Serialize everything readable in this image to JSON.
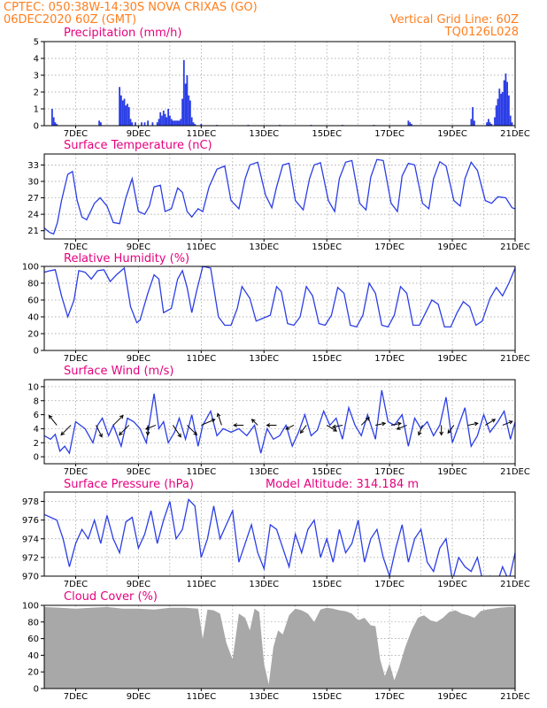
{
  "header": {
    "left_line1": "CPTEC:   050:38W-14:30S   NOVA CRIXAS (GO)",
    "left_line2": "06DEC2020 60Z (GMT)",
    "right_line1": "Vertical Grid Line: 60Z",
    "right_line2": "TQ0126L028"
  },
  "x_axis": {
    "ticks": [
      "7DEC",
      "9DEC",
      "11DEC",
      "13DEC",
      "15DEC",
      "17DEC",
      "19DEC",
      "21DEC"
    ],
    "start_day": 6,
    "end_day": 21
  },
  "colors": {
    "header": "#ff7f1f",
    "title": "#e6007e",
    "line": "#2b3ee6",
    "bar": "#2b3ee6",
    "cloud": "#a8a8a8"
  },
  "chart_data": [
    {
      "type": "bar",
      "title": "Precipitation (mm/h)",
      "ylim": [
        0,
        5
      ],
      "yticks": [
        "0",
        "1",
        "2",
        "3",
        "4",
        "5"
      ],
      "x": [
        6.25,
        6.3,
        6.35,
        6.4,
        7.75,
        7.8,
        8.4,
        8.45,
        8.5,
        8.55,
        8.6,
        8.65,
        8.7,
        8.75,
        8.8,
        8.9,
        9.1,
        9.2,
        9.3,
        9.45,
        9.6,
        9.65,
        9.7,
        9.75,
        9.8,
        9.85,
        9.9,
        9.95,
        10.0,
        10.05,
        10.1,
        10.15,
        10.2,
        10.25,
        10.3,
        10.35,
        10.4,
        10.45,
        10.5,
        10.55,
        10.6,
        10.65,
        10.7,
        10.75,
        10.8,
        11.0,
        11.5,
        12.5,
        13.5,
        14.5,
        15.5,
        16.5,
        17.6,
        17.65,
        17.7,
        19.6,
        19.65,
        19.7,
        20.1,
        20.15,
        20.2,
        20.25,
        20.35,
        20.4,
        20.45,
        20.5,
        20.55,
        20.6,
        20.65,
        20.7,
        20.75,
        20.8,
        20.85,
        20.9
      ],
      "values": [
        1.0,
        0.5,
        0.2,
        0.1,
        0.3,
        0.2,
        2.3,
        1.8,
        1.5,
        1.6,
        1.2,
        1.3,
        1.1,
        0.4,
        0.2,
        0.2,
        0.2,
        0.2,
        0.3,
        0.2,
        0.2,
        0.4,
        0.8,
        0.6,
        0.9,
        0.7,
        0.5,
        1.0,
        0.6,
        0.4,
        0.3,
        0.3,
        0.3,
        0.3,
        0.3,
        0.4,
        1.6,
        3.9,
        2.5,
        3.0,
        1.8,
        1.5,
        0.5,
        0.2,
        0.1,
        0.1,
        0.05,
        0.05,
        0.05,
        0.05,
        0.05,
        0.05,
        0.3,
        0.2,
        0.1,
        0.4,
        1.1,
        0.3,
        0.2,
        0.4,
        0.2,
        0.1,
        0.5,
        1.2,
        1.6,
        2.2,
        1.9,
        2.0,
        2.7,
        3.1,
        2.6,
        1.8,
        0.6,
        0.2
      ]
    },
    {
      "type": "line",
      "title": "Surface Temperature (nC)",
      "ylim": [
        19.5,
        35
      ],
      "yticks": [
        "21",
        "24",
        "27",
        "30",
        "33"
      ],
      "x": [
        6.0,
        6.17,
        6.3,
        6.42,
        6.55,
        6.75,
        6.9,
        7.05,
        7.2,
        7.35,
        7.6,
        7.78,
        8.0,
        8.2,
        8.4,
        8.6,
        8.8,
        9.0,
        9.2,
        9.35,
        9.5,
        9.7,
        9.85,
        10.05,
        10.25,
        10.4,
        10.55,
        10.7,
        10.9,
        11.05,
        11.25,
        11.5,
        11.75,
        11.95,
        12.2,
        12.4,
        12.55,
        12.8,
        13.05,
        13.25,
        13.4,
        13.6,
        13.8,
        14.0,
        14.25,
        14.45,
        14.6,
        14.8,
        15.05,
        15.25,
        15.4,
        15.6,
        15.8,
        16.05,
        16.25,
        16.4,
        16.6,
        16.8,
        17.05,
        17.25,
        17.4,
        17.6,
        17.8,
        18.05,
        18.25,
        18.4,
        18.6,
        18.8,
        19.05,
        19.25,
        19.4,
        19.6,
        19.8,
        20.05,
        20.25,
        20.45,
        20.7,
        20.9,
        21.0
      ],
      "values": [
        21.5,
        20.7,
        20.4,
        22.5,
        26.5,
        31.3,
        31.8,
        26.5,
        23.5,
        23.0,
        26.0,
        27.0,
        25.5,
        22.5,
        22.3,
        27.0,
        30.5,
        24.5,
        24.0,
        25.5,
        29.0,
        29.3,
        24.5,
        25.0,
        28.8,
        28.0,
        24.5,
        23.5,
        25.0,
        24.5,
        29.0,
        32.2,
        32.8,
        26.5,
        25.0,
        30.5,
        33.0,
        33.5,
        27.5,
        25.2,
        29.0,
        33.0,
        33.3,
        26.5,
        24.8,
        30.5,
        33.0,
        33.4,
        26.5,
        24.5,
        30.5,
        33.5,
        33.8,
        26.0,
        24.8,
        30.8,
        34.0,
        33.8,
        26.0,
        24.5,
        31.0,
        33.3,
        33.0,
        26.0,
        25.0,
        30.5,
        33.6,
        32.8,
        26.5,
        25.5,
        30.5,
        33.5,
        32.0,
        26.5,
        26.0,
        27.2,
        27.0,
        25.2,
        25.0
      ]
    },
    {
      "type": "line",
      "title": "Relative Humidity (%)",
      "ylim": [
        0,
        100
      ],
      "yticks": [
        "0",
        "20",
        "40",
        "60",
        "80",
        "100"
      ],
      "x": [
        6.0,
        6.2,
        6.35,
        6.55,
        6.75,
        6.95,
        7.1,
        7.3,
        7.5,
        7.7,
        7.9,
        8.1,
        8.3,
        8.55,
        8.75,
        8.95,
        9.05,
        9.3,
        9.5,
        9.65,
        9.8,
        10.05,
        10.25,
        10.4,
        10.55,
        10.7,
        10.85,
        11.05,
        11.3,
        11.55,
        11.75,
        11.95,
        12.15,
        12.3,
        12.55,
        12.75,
        12.95,
        13.2,
        13.4,
        13.55,
        13.75,
        13.95,
        14.15,
        14.35,
        14.55,
        14.75,
        14.95,
        15.15,
        15.35,
        15.55,
        15.75,
        15.95,
        16.15,
        16.35,
        16.55,
        16.75,
        16.95,
        17.15,
        17.35,
        17.55,
        17.75,
        17.95,
        18.15,
        18.35,
        18.55,
        18.75,
        18.95,
        19.15,
        19.35,
        19.55,
        19.75,
        19.95,
        20.2,
        20.4,
        20.6,
        20.8,
        21.0
      ],
      "values": [
        93,
        95,
        96,
        65,
        40,
        60,
        95,
        93,
        85,
        95,
        96,
        82,
        90,
        98,
        52,
        33,
        36,
        68,
        90,
        85,
        45,
        50,
        85,
        95,
        75,
        45,
        70,
        100,
        98,
        40,
        30,
        30,
        50,
        76,
        62,
        35,
        38,
        42,
        76,
        70,
        32,
        30,
        40,
        76,
        65,
        32,
        30,
        42,
        75,
        68,
        30,
        28,
        42,
        80,
        68,
        30,
        28,
        42,
        76,
        68,
        30,
        30,
        45,
        60,
        55,
        28,
        28,
        45,
        58,
        52,
        30,
        35,
        62,
        75,
        65,
        80,
        98
      ]
    },
    {
      "type": "line",
      "title": "Surface Wind (m/s)",
      "ylim": [
        -1,
        11
      ],
      "yticks": [
        "0",
        "2",
        "4",
        "6",
        "8",
        "10"
      ],
      "x": [
        6.0,
        6.2,
        6.35,
        6.5,
        6.65,
        6.8,
        7.0,
        7.15,
        7.3,
        7.55,
        7.7,
        7.85,
        8.05,
        8.2,
        8.45,
        8.65,
        8.85,
        9.05,
        9.25,
        9.5,
        9.65,
        9.8,
        9.95,
        10.15,
        10.3,
        10.5,
        10.7,
        10.9,
        11.05,
        11.3,
        11.5,
        11.7,
        11.95,
        12.2,
        12.45,
        12.7,
        12.9,
        13.1,
        13.3,
        13.5,
        13.7,
        13.9,
        14.1,
        14.3,
        14.5,
        14.7,
        14.9,
        15.1,
        15.3,
        15.5,
        15.7,
        15.9,
        16.1,
        16.3,
        16.55,
        16.75,
        16.95,
        17.15,
        17.4,
        17.6,
        17.8,
        18.0,
        18.2,
        18.4,
        18.6,
        18.8,
        19.0,
        19.2,
        19.4,
        19.6,
        19.8,
        20.0,
        20.2,
        20.45,
        20.65,
        20.85,
        21.0
      ],
      "values": [
        3.0,
        2.5,
        3.2,
        0.8,
        1.5,
        0.5,
        5.0,
        4.5,
        4.0,
        2.0,
        4.5,
        5.5,
        3.0,
        4.5,
        1.5,
        5.5,
        5.0,
        4.0,
        2.0,
        9.0,
        4.0,
        5.0,
        2.0,
        3.5,
        5.5,
        2.5,
        6.0,
        1.5,
        4.5,
        6.5,
        3.0,
        4.0,
        3.5,
        4.0,
        3.0,
        4.5,
        0.5,
        4.0,
        2.5,
        3.0,
        4.5,
        1.5,
        3.5,
        6.0,
        3.0,
        3.8,
        6.5,
        4.5,
        5.5,
        2.5,
        7.0,
        4.5,
        3.0,
        6.0,
        2.5,
        9.5,
        5.0,
        4.5,
        6.0,
        1.5,
        5.5,
        4.0,
        5.0,
        3.0,
        4.5,
        8.5,
        2.0,
        4.5,
        7.0,
        1.5,
        3.0,
        6.0,
        3.5,
        5.0,
        6.5,
        2.5,
        5.0
      ],
      "arrows": [
        {
          "x": 6.4,
          "dx": -4,
          "dy": -5
        },
        {
          "x": 6.85,
          "dx": -5,
          "dy": 5
        },
        {
          "x": 7.65,
          "dx": 3,
          "dy": 6
        },
        {
          "x": 8.2,
          "dx": 5,
          "dy": -5
        },
        {
          "x": 8.7,
          "dx": -5,
          "dy": 5
        },
        {
          "x": 9.3,
          "dx": 0,
          "dy": 5
        },
        {
          "x": 9.55,
          "dx": -5,
          "dy": 2
        },
        {
          "x": 10.1,
          "dx": 4,
          "dy": 6
        },
        {
          "x": 10.55,
          "dx": 5,
          "dy": 5
        },
        {
          "x": 11.0,
          "dx": 7,
          "dy": -3
        },
        {
          "x": 11.65,
          "dx": -2,
          "dy": -6
        },
        {
          "x": 12.35,
          "dx": -5,
          "dy": 0
        },
        {
          "x": 12.8,
          "dx": -3,
          "dy": -3
        },
        {
          "x": 13.4,
          "dx": -5,
          "dy": 0
        },
        {
          "x": 13.95,
          "dx": -4,
          "dy": 2
        },
        {
          "x": 14.35,
          "dx": -3,
          "dy": 4
        },
        {
          "x": 15.0,
          "dx": 5,
          "dy": 3
        },
        {
          "x": 15.5,
          "dx": -5,
          "dy": 1
        },
        {
          "x": 16.1,
          "dx": 4,
          "dy": -4
        },
        {
          "x": 16.55,
          "dx": 5,
          "dy": -1
        },
        {
          "x": 17.05,
          "dx": 5,
          "dy": -1
        },
        {
          "x": 17.55,
          "dx": -5,
          "dy": 2
        },
        {
          "x": 18.05,
          "dx": -2,
          "dy": 5
        },
        {
          "x": 18.65,
          "dx": 0,
          "dy": 5
        },
        {
          "x": 19.05,
          "dx": -3,
          "dy": 4
        },
        {
          "x": 19.5,
          "dx": 5,
          "dy": -1
        },
        {
          "x": 20.05,
          "dx": 5,
          "dy": -3
        },
        {
          "x": 20.6,
          "dx": 5,
          "dy": -2
        }
      ]
    },
    {
      "type": "line",
      "title": "Surface Pressure (hPa)",
      "annotation": "Model Altitude: 314.184 m",
      "ylim": [
        970,
        979
      ],
      "yticks": [
        "970",
        "972",
        "974",
        "976",
        "978"
      ],
      "x": [
        6.0,
        6.2,
        6.4,
        6.6,
        6.8,
        7.0,
        7.2,
        7.4,
        7.6,
        7.8,
        8.0,
        8.2,
        8.4,
        8.6,
        8.8,
        9.0,
        9.2,
        9.4,
        9.6,
        9.8,
        10.0,
        10.2,
        10.4,
        10.6,
        10.8,
        11.0,
        11.2,
        11.4,
        11.6,
        11.8,
        12.0,
        12.2,
        12.4,
        12.6,
        12.8,
        13.0,
        13.2,
        13.4,
        13.6,
        13.8,
        14.0,
        14.2,
        14.4,
        14.6,
        14.8,
        15.0,
        15.2,
        15.4,
        15.6,
        15.8,
        16.0,
        16.2,
        16.4,
        16.6,
        16.8,
        17.0,
        17.2,
        17.4,
        17.6,
        17.8,
        18.0,
        18.2,
        18.4,
        18.6,
        18.8,
        19.0,
        19.2,
        19.4,
        19.6,
        19.8,
        20.0,
        20.2,
        20.4,
        20.6,
        20.8,
        21.0
      ],
      "values": [
        976.6,
        976.3,
        976.0,
        974.0,
        971.0,
        973.5,
        975.0,
        974.0,
        976.0,
        973.5,
        976.5,
        974.0,
        972.5,
        975.8,
        976.3,
        973.0,
        974.5,
        977.0,
        973.5,
        976.0,
        978.0,
        974.0,
        975.0,
        978.2,
        977.5,
        972.0,
        974.0,
        977.5,
        974.0,
        975.5,
        977.0,
        971.5,
        973.5,
        975.5,
        972.5,
        970.8,
        975.5,
        975.0,
        973.0,
        971.0,
        974.5,
        972.5,
        975.0,
        976.0,
        972.0,
        974.0,
        971.5,
        975.0,
        972.5,
        973.5,
        976.0,
        971.5,
        974.0,
        975.0,
        972.0,
        970.0,
        973.0,
        975.5,
        971.5,
        974.0,
        975.0,
        971.5,
        970.5,
        973.0,
        974.0,
        969.5,
        972.0,
        971.0,
        970.5,
        972.0,
        969.0,
        970.0,
        969.0,
        971.0,
        969.5,
        972.5
      ]
    },
    {
      "type": "area",
      "title": "Cloud Cover (%)",
      "ylim": [
        0,
        100
      ],
      "yticks": [
        "0",
        "20",
        "40",
        "60",
        "80",
        "100"
      ],
      "x": [
        6.0,
        6.5,
        7.0,
        7.5,
        8.0,
        8.5,
        9.0,
        9.5,
        10.0,
        10.5,
        10.9,
        11.05,
        11.2,
        11.4,
        11.6,
        11.8,
        12.0,
        12.2,
        12.4,
        12.55,
        12.7,
        12.85,
        13.0,
        13.15,
        13.3,
        13.45,
        13.6,
        13.8,
        14.0,
        14.2,
        14.4,
        14.6,
        14.8,
        15.0,
        15.2,
        15.4,
        15.6,
        15.8,
        16.0,
        16.2,
        16.4,
        16.55,
        16.7,
        16.85,
        17.0,
        17.15,
        17.3,
        17.5,
        17.7,
        17.9,
        18.1,
        18.3,
        18.5,
        18.7,
        18.9,
        19.1,
        19.3,
        19.5,
        19.7,
        19.9,
        20.1,
        20.3,
        20.5,
        20.8,
        21.0
      ],
      "values": [
        98,
        97,
        96,
        97,
        98,
        96,
        96,
        95,
        97,
        97,
        96,
        60,
        95,
        94,
        90,
        55,
        35,
        90,
        85,
        70,
        96,
        92,
        30,
        5,
        50,
        70,
        65,
        88,
        96,
        94,
        90,
        80,
        95,
        97,
        96,
        94,
        93,
        90,
        82,
        85,
        76,
        75,
        35,
        15,
        30,
        10,
        25,
        50,
        70,
        85,
        88,
        82,
        80,
        85,
        92,
        94,
        90,
        88,
        85,
        93,
        95,
        96,
        97,
        98,
        98
      ]
    }
  ]
}
